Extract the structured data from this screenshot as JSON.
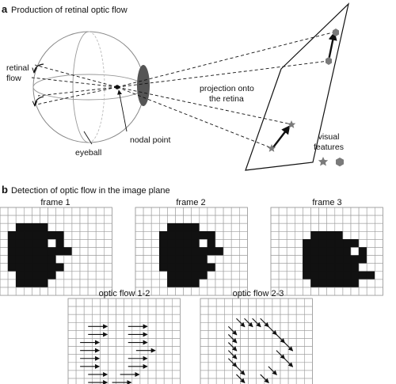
{
  "panel_a": {
    "letter": "a",
    "title": "Production of retinal optic flow",
    "labels": {
      "retinal_flow": [
        "retinal",
        "flow"
      ],
      "eyeball": "eyeball",
      "nodal_point": "nodal point",
      "projection": [
        "projection onto",
        "the retina"
      ],
      "visual_features": [
        "visual",
        "features"
      ]
    }
  },
  "panel_b": {
    "letter": "b",
    "title": "Detection of optic flow in the image plane",
    "frames": [
      {
        "title": "frame 1",
        "cells": [
          [
            0,
            0,
            0,
            0,
            0,
            0,
            0,
            0,
            0,
            0,
            0,
            0,
            0,
            0
          ],
          [
            0,
            0,
            0,
            0,
            0,
            0,
            0,
            0,
            0,
            0,
            0,
            0,
            0,
            0
          ],
          [
            0,
            0,
            1,
            1,
            1,
            1,
            0,
            0,
            0,
            0,
            0,
            0,
            0,
            0
          ],
          [
            0,
            1,
            1,
            1,
            1,
            1,
            1,
            1,
            0,
            0,
            0,
            0,
            0,
            0
          ],
          [
            0,
            1,
            1,
            1,
            1,
            1,
            0,
            1,
            0,
            0,
            0,
            0,
            0,
            0
          ],
          [
            0,
            1,
            1,
            1,
            1,
            1,
            1,
            1,
            1,
            0,
            0,
            0,
            0,
            0
          ],
          [
            0,
            1,
            1,
            1,
            1,
            1,
            1,
            0,
            0,
            0,
            0,
            0,
            0,
            0
          ],
          [
            0,
            1,
            1,
            1,
            1,
            1,
            1,
            1,
            0,
            0,
            0,
            0,
            0,
            0
          ],
          [
            0,
            0,
            1,
            1,
            1,
            1,
            1,
            0,
            0,
            0,
            0,
            0,
            0,
            0
          ],
          [
            0,
            0,
            1,
            1,
            1,
            1,
            0,
            0,
            0,
            0,
            0,
            0,
            0,
            0
          ],
          [
            0,
            0,
            0,
            0,
            0,
            0,
            0,
            0,
            0,
            0,
            0,
            0,
            0,
            0
          ]
        ]
      },
      {
        "title": "frame 2",
        "cells": [
          [
            0,
            0,
            0,
            0,
            0,
            0,
            0,
            0,
            0,
            0,
            0,
            0,
            0,
            0
          ],
          [
            0,
            0,
            0,
            0,
            0,
            0,
            0,
            0,
            0,
            0,
            0,
            0,
            0,
            0
          ],
          [
            0,
            0,
            0,
            0,
            1,
            1,
            1,
            1,
            0,
            0,
            0,
            0,
            0,
            0
          ],
          [
            0,
            0,
            0,
            1,
            1,
            1,
            1,
            1,
            1,
            1,
            0,
            0,
            0,
            0
          ],
          [
            0,
            0,
            0,
            1,
            1,
            1,
            1,
            1,
            0,
            1,
            0,
            0,
            0,
            0
          ],
          [
            0,
            0,
            0,
            1,
            1,
            1,
            1,
            1,
            1,
            1,
            1,
            0,
            0,
            0
          ],
          [
            0,
            0,
            0,
            1,
            1,
            1,
            1,
            1,
            1,
            0,
            0,
            0,
            0,
            0
          ],
          [
            0,
            0,
            0,
            1,
            1,
            1,
            1,
            1,
            1,
            1,
            0,
            0,
            0,
            0
          ],
          [
            0,
            0,
            0,
            0,
            1,
            1,
            1,
            1,
            1,
            0,
            0,
            0,
            0,
            0
          ],
          [
            0,
            0,
            0,
            0,
            1,
            1,
            1,
            1,
            0,
            0,
            0,
            0,
            0,
            0
          ],
          [
            0,
            0,
            0,
            0,
            0,
            0,
            0,
            0,
            0,
            0,
            0,
            0,
            0,
            0
          ]
        ]
      },
      {
        "title": "frame 3",
        "cells": [
          [
            0,
            0,
            0,
            0,
            0,
            0,
            0,
            0,
            0,
            0,
            0,
            0,
            0,
            0
          ],
          [
            0,
            0,
            0,
            0,
            0,
            0,
            0,
            0,
            0,
            0,
            0,
            0,
            0,
            0
          ],
          [
            0,
            0,
            0,
            0,
            0,
            0,
            0,
            0,
            0,
            0,
            0,
            0,
            0,
            0
          ],
          [
            0,
            0,
            0,
            0,
            0,
            1,
            1,
            1,
            1,
            0,
            0,
            0,
            0,
            0
          ],
          [
            0,
            0,
            0,
            0,
            1,
            1,
            1,
            1,
            1,
            1,
            1,
            0,
            0,
            0
          ],
          [
            0,
            0,
            0,
            0,
            1,
            1,
            1,
            1,
            1,
            1,
            0,
            1,
            0,
            0
          ],
          [
            0,
            0,
            0,
            0,
            1,
            1,
            1,
            1,
            1,
            1,
            1,
            1,
            0,
            0
          ],
          [
            0,
            0,
            0,
            0,
            1,
            1,
            1,
            1,
            1,
            1,
            1,
            0,
            0,
            0
          ],
          [
            0,
            0,
            0,
            0,
            1,
            1,
            1,
            1,
            1,
            1,
            1,
            1,
            1,
            0
          ],
          [
            0,
            0,
            0,
            0,
            0,
            1,
            1,
            1,
            1,
            1,
            1,
            0,
            0,
            0
          ],
          [
            0,
            0,
            0,
            0,
            0,
            0,
            0,
            0,
            0,
            0,
            0,
            0,
            0,
            0
          ]
        ]
      }
    ],
    "flows": [
      {
        "title": "optic flow 1-2",
        "arrows": [
          [
            2,
            3,
            2
          ],
          [
            7,
            3,
            2
          ],
          [
            2,
            4,
            2
          ],
          [
            7,
            4,
            2
          ],
          [
            1,
            5,
            2
          ],
          [
            7,
            5,
            2
          ],
          [
            1,
            6,
            2
          ],
          [
            8,
            6,
            2
          ],
          [
            1,
            7,
            2
          ],
          [
            7,
            7,
            2
          ],
          [
            1,
            8,
            2
          ],
          [
            7,
            8,
            2
          ],
          [
            2,
            9,
            2
          ],
          [
            6,
            9,
            2
          ],
          [
            2,
            10,
            2
          ],
          [
            5,
            10,
            2
          ]
        ]
      },
      {
        "title": "optic flow 2-3",
        "arrows": [
          [
            4,
            2,
            1
          ],
          [
            5,
            2,
            1
          ],
          [
            6,
            2,
            1
          ],
          [
            7,
            2,
            1
          ],
          [
            3,
            3,
            1
          ],
          [
            8,
            3,
            1
          ],
          [
            3,
            4,
            1
          ],
          [
            9,
            4,
            1
          ],
          [
            3,
            5,
            1
          ],
          [
            10,
            5,
            1
          ],
          [
            3,
            6,
            1
          ],
          [
            9,
            6,
            1
          ],
          [
            3,
            7,
            1
          ],
          [
            10,
            7,
            1
          ],
          [
            4,
            8,
            1
          ],
          [
            8,
            8,
            1
          ],
          [
            4,
            9,
            1
          ],
          [
            7,
            9,
            1
          ]
        ]
      }
    ]
  },
  "colors": {
    "ink": "#111111",
    "grid_line": "#9a9a9a",
    "lens": "#555555",
    "feature_marker": "#7a7a7a"
  }
}
